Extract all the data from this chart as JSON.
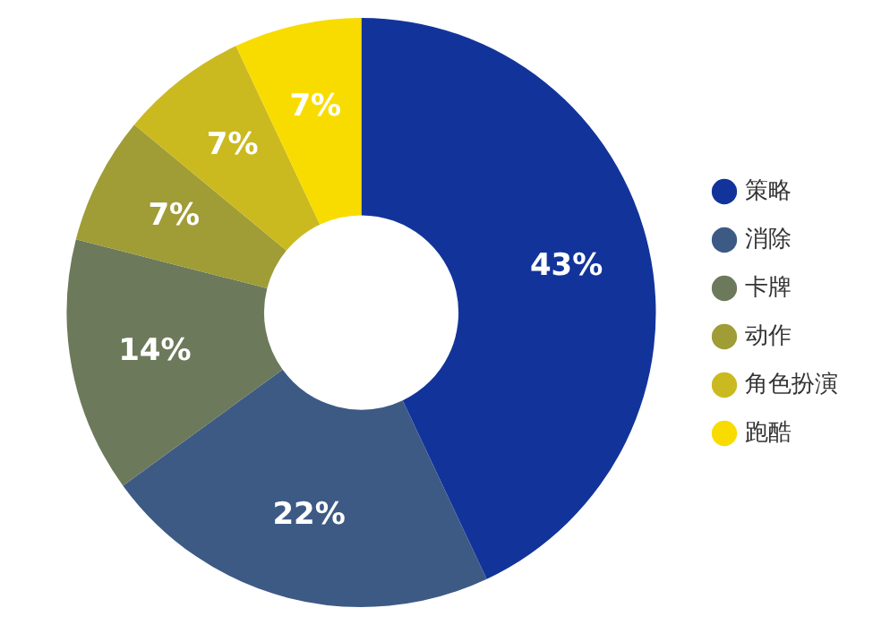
{
  "chart_data": {
    "type": "donut",
    "categories": [
      "策略",
      "消除",
      "卡牌",
      "动作",
      "角色扮演",
      "跑酷"
    ],
    "values": [
      43,
      22,
      14,
      7,
      7,
      7
    ],
    "colors": [
      "#12349a",
      "#3d5a85",
      "#6c7a5b",
      "#a09c36",
      "#cbb920",
      "#f8dc00"
    ],
    "value_labels": [
      "43%",
      "22%",
      "14%",
      "7%",
      "7%",
      "7%"
    ],
    "legend": "right"
  }
}
